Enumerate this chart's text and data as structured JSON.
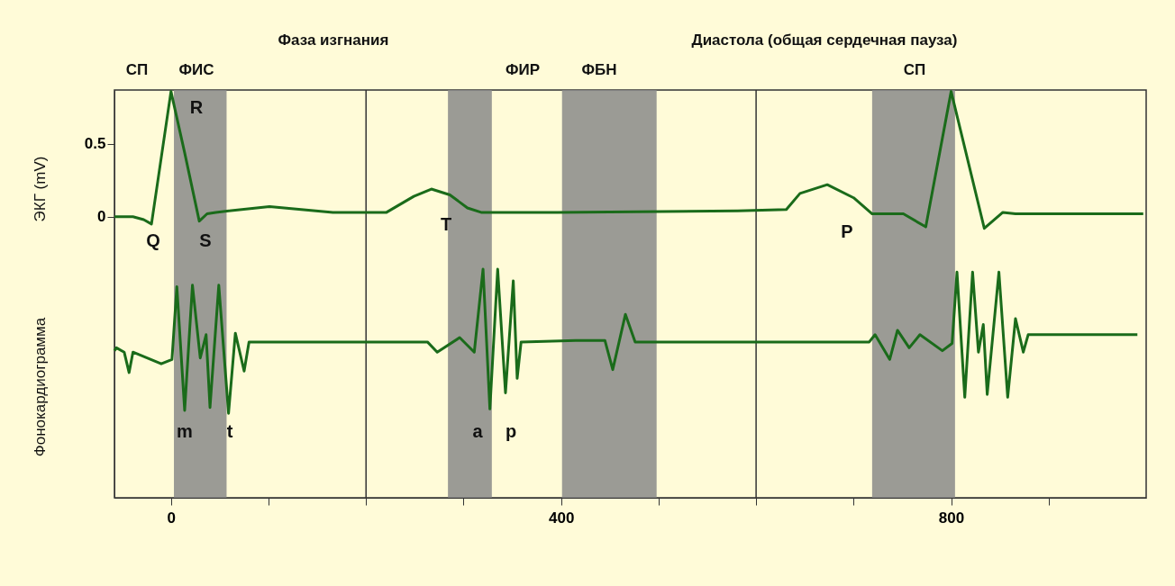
{
  "chart_data": {
    "type": "line",
    "ylabel": "ЭКГ (mV)",
    "xlim": [
      -58,
      1000
    ],
    "ylim": [
      -1.93,
      0.87
    ],
    "xticks": [
      0,
      {
        "value": 100,
        "label": null
      },
      {
        "value": 200,
        "label": null
      },
      {
        "value": 300,
        "label": null
      },
      400,
      {
        "value": 500,
        "label": null
      },
      {
        "value": 600,
        "label": null
      },
      {
        "value": 700,
        "label": null
      },
      800,
      {
        "value": 900,
        "label": null
      }
    ],
    "yticks": [
      0,
      0.5
    ],
    "grid": false,
    "marker": "none",
    "line_style": "solid",
    "series": [
      {
        "color": "#1a6b1a",
        "x": [
          -58,
          -39,
          -28,
          -20,
          0,
          14,
          29,
          37,
          46,
          101,
          166,
          221,
          249,
          267,
          286,
          304,
          318,
          396,
          581,
          631,
          645,
          673,
          700,
          719,
          751,
          774,
          800,
          834,
          853,
          866,
          997
        ],
        "values": [
          0,
          0,
          -0.02,
          -0.05,
          0.86,
          0.44,
          -0.03,
          0.02,
          0.03,
          0.07,
          0.03,
          0.03,
          0.14,
          0.19,
          0.15,
          0.06,
          0.03,
          0.03,
          0.04,
          0.05,
          0.16,
          0.22,
          0.13,
          0.02,
          0.02,
          -0.07,
          0.86,
          -0.08,
          0.03,
          0.02,
          0.02
        ]
      },
      {
        "color": "#1a6b1a",
        "x": [
          -58,
          -56,
          -48,
          -43,
          -39,
          -10,
          1,
          6,
          14,
          22,
          30,
          36,
          40,
          49,
          59,
          66,
          75,
          80,
          263,
          273,
          296,
          311,
          320,
          327,
          335,
          343,
          351,
          355,
          359,
          415,
          445,
          453,
          466,
          476,
          716,
          722,
          737,
          745,
          757,
          768,
          791,
          801,
          806,
          814,
          822,
          828,
          833,
          837,
          849,
          858,
          866,
          874,
          879,
          991
        ],
        "values": [
          -0.92,
          -0.9,
          -0.93,
          -1.07,
          -0.93,
          -1.01,
          -0.98,
          -0.48,
          -1.33,
          -0.47,
          -0.97,
          -0.81,
          -1.31,
          -0.47,
          -1.35,
          -0.8,
          -1.06,
          -0.86,
          -0.86,
          -0.93,
          -0.83,
          -0.93,
          -0.36,
          -1.32,
          -0.36,
          -1.21,
          -0.44,
          -1.11,
          -0.86,
          -0.85,
          -0.85,
          -1.05,
          -0.67,
          -0.86,
          -0.86,
          -0.81,
          -0.98,
          -0.78,
          -0.9,
          -0.81,
          -0.92,
          -0.87,
          -0.38,
          -1.24,
          -0.38,
          -0.93,
          -0.74,
          -1.22,
          -0.38,
          -1.24,
          -0.7,
          -0.93,
          -0.81,
          -0.81
        ]
      }
    ],
    "bands": [
      {
        "axis": "x",
        "from": 3,
        "to": 57,
        "color": "#8a8a8a"
      },
      {
        "axis": "x",
        "from": 284,
        "to": 329,
        "color": "#8a8a8a"
      },
      {
        "axis": "x",
        "from": 401,
        "to": 498,
        "color": "#8a8a8a"
      },
      {
        "axis": "x",
        "from": 719,
        "to": 804,
        "color": "#8a8a8a"
      }
    ],
    "ref_lines": [
      {
        "axis": "x",
        "value": 200,
        "color": "#333333"
      },
      {
        "axis": "x",
        "value": 600,
        "color": "#333333"
      }
    ],
    "annotations": [
      "СП",
      "ФИС",
      "Фаза изгнания",
      "ФИР",
      "ФБН",
      "Диастола (общая сердечная пауза)",
      "СП",
      "Q",
      "R",
      "S",
      "T",
      "P",
      "m",
      "t",
      "a",
      "p",
      "Фонокардиограмма"
    ]
  }
}
